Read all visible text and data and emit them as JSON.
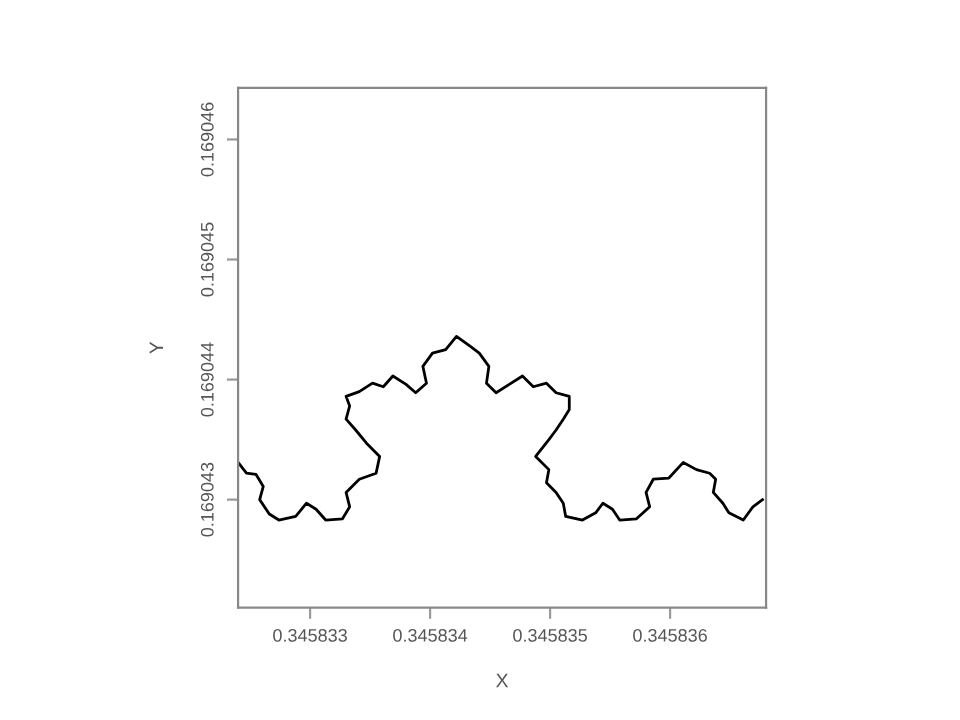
{
  "chart_data": {
    "type": "line",
    "xlabel": "X",
    "ylabel": "Y",
    "x": [
      0.3458324,
      0.34583247,
      0.34583255,
      0.34583261,
      0.34583258,
      0.34583266,
      0.34583274,
      0.34583288,
      0.34583297,
      0.34583305,
      0.34583313,
      0.34583327,
      0.34583333,
      0.3458333,
      0.34583341,
      0.34583355,
      0.34583358,
      0.34583347,
      0.34583338,
      0.3458333,
      0.34583333,
      0.3458333,
      0.34583341,
      0.34583352,
      0.34583361,
      0.34583369,
      0.3458338,
      0.34583388,
      0.34583397,
      0.34583394,
      0.34583402,
      0.34583413,
      0.34583422,
      0.34583433,
      0.34583441,
      0.34583449,
      0.34583447,
      0.34583455,
      0.34583466,
      0.34583477,
      0.34583486,
      0.34583497,
      0.34583505,
      0.34583516,
      0.34583516,
      0.34583511,
      0.34583505,
      0.34583499,
      0.34583488,
      0.34583499,
      0.34583497,
      0.34583505,
      0.34583511,
      0.34583513,
      0.34583527,
      0.34583538,
      0.34583544,
      0.34583552,
      0.34583558,
      0.34583572,
      0.34583583,
      0.3458358,
      0.34583586,
      0.34583599,
      0.34583611,
      0.34583622,
      0.34583633,
      0.34583638,
      0.34583636,
      0.34583644,
      0.34583649,
      0.34583661,
      0.34583669,
      0.34583677
    ],
    "series": [
      {
        "color": "#000000",
        "values": [
          0.16904331,
          0.16904322,
          0.16904321,
          0.16904311,
          0.169043,
          0.16904288,
          0.16904283,
          0.16904286,
          0.16904297,
          0.16904292,
          0.16904283,
          0.16904284,
          0.16904294,
          0.16904306,
          0.16904317,
          0.16904322,
          0.16904336,
          0.16904347,
          0.16904358,
          0.16904367,
          0.16904378,
          0.16904386,
          0.1690439,
          0.16904397,
          0.16904394,
          0.16904403,
          0.16904396,
          0.16904389,
          0.16904397,
          0.16904411,
          0.16904422,
          0.16904425,
          0.16904436,
          0.16904428,
          0.16904422,
          0.16904411,
          0.16904397,
          0.16904389,
          0.16904396,
          0.16904403,
          0.16904394,
          0.16904397,
          0.16904389,
          0.16904386,
          0.16904375,
          0.16904367,
          0.16904358,
          0.1690435,
          0.16904336,
          0.16904325,
          0.16904314,
          0.16904306,
          0.16904297,
          0.16904286,
          0.16904283,
          0.16904289,
          0.16904297,
          0.16904292,
          0.16904283,
          0.16904284,
          0.16904294,
          0.16904306,
          0.16904317,
          0.16904318,
          0.16904331,
          0.16904325,
          0.16904322,
          0.16904317,
          0.16904306,
          0.16904297,
          0.16904289,
          0.16904283,
          0.16904294,
          0.169043
        ]
      }
    ],
    "xlim": [
      0.3458324,
      0.3458368
    ],
    "ylim": [
      0.1690421,
      0.16904643
    ],
    "xticks": [
      0.345833,
      0.345834,
      0.345835,
      0.345836
    ],
    "yticks": [
      0.169043,
      0.169044,
      0.169045,
      0.169046
    ],
    "grid": false,
    "marker": "none",
    "line_style": "solid"
  }
}
